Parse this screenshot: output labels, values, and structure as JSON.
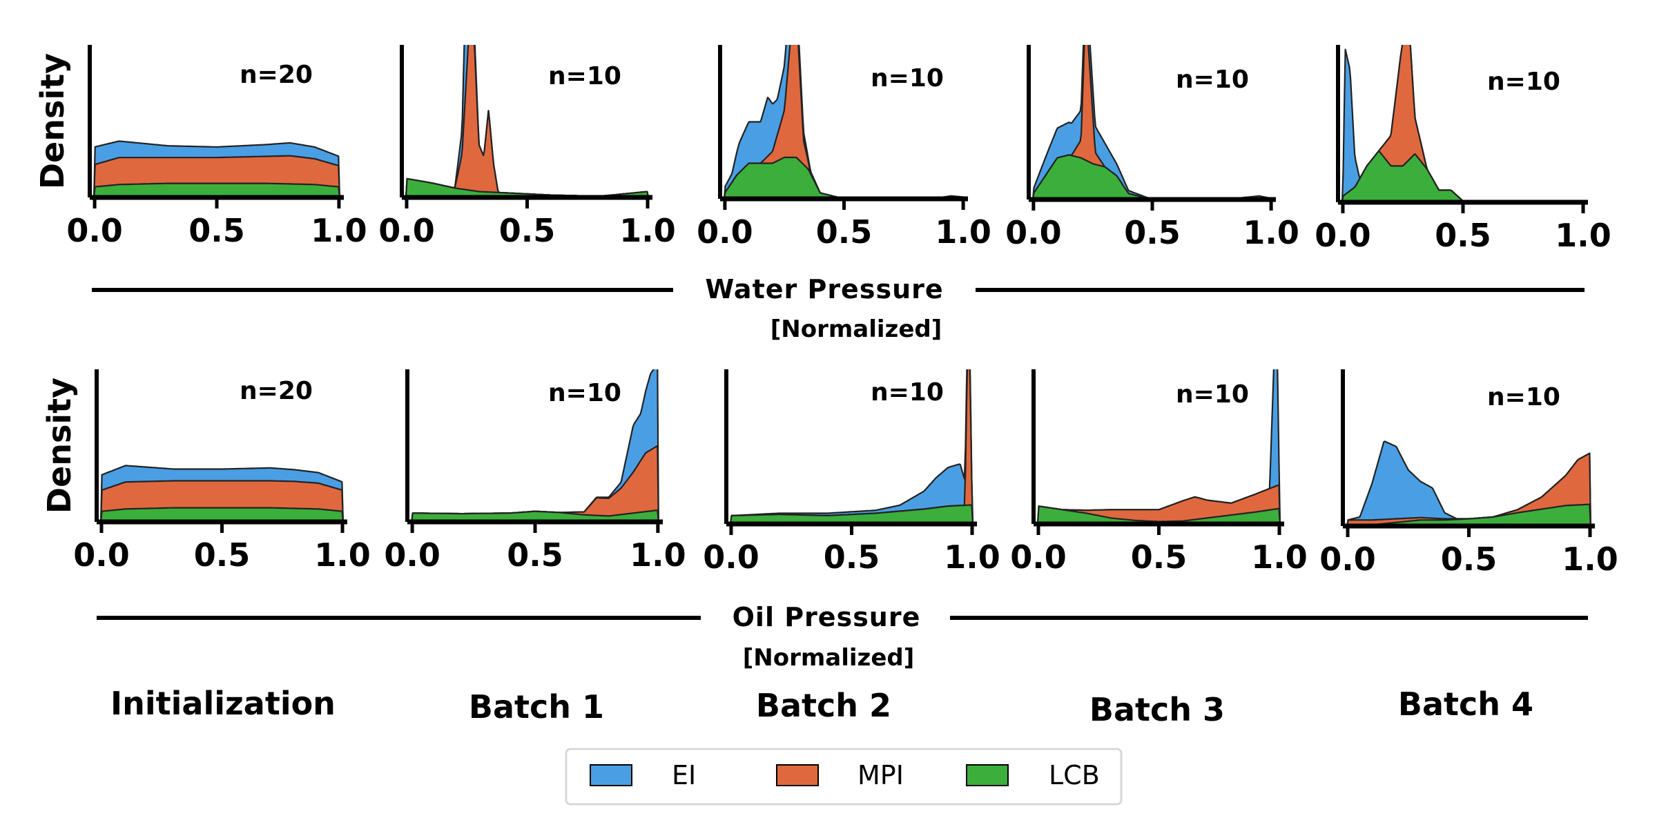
{
  "colors": {
    "EI": "#4a9fe4",
    "MPI": "#e0683f",
    "LCB": "#3cae3c",
    "axis": "#000000"
  },
  "legend": {
    "entries": [
      "EI",
      "MPI",
      "LCB"
    ]
  },
  "batch_labels": [
    "Initialization",
    "Batch 1",
    "Batch 2",
    "Batch 3",
    "Batch 4"
  ],
  "rows": [
    {
      "xlabel": "Water Pressure",
      "xlabel_sub": "[Normalized]",
      "ylabel": "Density"
    },
    {
      "xlabel": "Oil Pressure",
      "xlabel_sub": "[Normalized]",
      "ylabel": "Density"
    }
  ],
  "chart_data": [
    {
      "type": "area",
      "row": 0,
      "panel": 0,
      "title": "Initialization",
      "ylabel": "Density",
      "xlabel": "Water Pressure [Normalized]",
      "annotation": "n=20",
      "xlim": [
        -0.02,
        1.02
      ],
      "ylim": [
        0,
        2.6
      ],
      "xticks": [
        0.0,
        0.5,
        1.0
      ],
      "xtick_labels": [
        "0.0",
        "0.5",
        "1.0"
      ],
      "series": [
        {
          "name": "LCB",
          "x": [
            0,
            0.1,
            0.3,
            0.5,
            0.7,
            0.9,
            1.0
          ],
          "y": [
            0.18,
            0.22,
            0.24,
            0.24,
            0.24,
            0.22,
            0.18
          ]
        },
        {
          "name": "MPI",
          "x": [
            0,
            0.1,
            0.3,
            0.5,
            0.7,
            0.8,
            0.9,
            1.0
          ],
          "y": [
            0.38,
            0.46,
            0.44,
            0.44,
            0.46,
            0.48,
            0.44,
            0.36
          ]
        },
        {
          "name": "EI",
          "x": [
            0,
            0.1,
            0.3,
            0.5,
            0.7,
            0.8,
            0.9,
            1.0
          ],
          "y": [
            0.3,
            0.28,
            0.2,
            0.18,
            0.2,
            0.22,
            0.2,
            0.16
          ]
        }
      ]
    },
    {
      "type": "area",
      "row": 0,
      "panel": 1,
      "title": "Batch 1",
      "ylabel": "",
      "xlabel": "Water Pressure [Normalized]",
      "annotation": "n=10",
      "xlim": [
        -0.02,
        1.02
      ],
      "ylim": [
        0,
        2.6
      ],
      "xticks": [
        0.0,
        0.5,
        1.0
      ],
      "xtick_labels": [
        "0.0",
        "0.5",
        "1.0"
      ],
      "series": [
        {
          "name": "LCB",
          "x": [
            0,
            0.1,
            0.2,
            0.3,
            0.4,
            0.6,
            0.8,
            0.9,
            1.0
          ],
          "y": [
            0.32,
            0.25,
            0.16,
            0.1,
            0.08,
            0.04,
            0.02,
            0.06,
            0.1
          ]
        },
        {
          "name": "MPI",
          "x": [
            0.2,
            0.23,
            0.26,
            0.28,
            0.3,
            0.32,
            0.34,
            0.36,
            0.38
          ],
          "y": [
            0,
            0.6,
            2.8,
            2.6,
            0.8,
            0.6,
            1.4,
            0.5,
            0
          ]
        },
        {
          "name": "EI",
          "x": [
            0.2,
            0.23,
            0.25,
            0.27,
            0.3
          ],
          "y": [
            0,
            0.4,
            2.2,
            0.3,
            0
          ]
        }
      ]
    },
    {
      "type": "area",
      "row": 0,
      "panel": 2,
      "title": "Batch 2",
      "ylabel": "",
      "xlabel": "Water Pressure [Normalized]",
      "annotation": "n=10",
      "xlim": [
        -0.02,
        1.02
      ],
      "ylim": [
        0,
        2.6
      ],
      "xticks": [
        0.0,
        0.5,
        1.0
      ],
      "xtick_labels": [
        "0.0",
        "0.5",
        "1.0"
      ],
      "series": [
        {
          "name": "LCB",
          "x": [
            0,
            0.05,
            0.1,
            0.15,
            0.2,
            0.25,
            0.3,
            0.35,
            0.4,
            0.5,
            0.6,
            1.0
          ],
          "y": [
            0.1,
            0.4,
            0.6,
            0.6,
            0.6,
            0.7,
            0.7,
            0.5,
            0.1,
            0,
            0,
            0
          ]
        },
        {
          "name": "MPI",
          "x": [
            0.15,
            0.2,
            0.25,
            0.28,
            0.3,
            0.33,
            0.36
          ],
          "y": [
            0,
            0.2,
            0.8,
            2.2,
            2.5,
            0.4,
            0
          ]
        },
        {
          "name": "EI",
          "x": [
            0,
            0.03,
            0.06,
            0.1,
            0.15,
            0.18,
            0.22,
            0.26,
            0.3,
            0.35,
            0.4,
            0.8,
            0.9,
            0.95,
            1.0
          ],
          "y": [
            0.1,
            0.15,
            0.5,
            0.7,
            0.7,
            1.0,
            0.6,
            0.8,
            0.3,
            0.05,
            0,
            0,
            0.02,
            0.05,
            0.03
          ]
        }
      ]
    },
    {
      "type": "area",
      "row": 0,
      "panel": 3,
      "title": "Batch 3",
      "ylabel": "",
      "xlabel": "Water Pressure [Normalized]",
      "annotation": "n=10",
      "xlim": [
        -0.02,
        1.02
      ],
      "ylim": [
        0,
        2.6
      ],
      "xticks": [
        0.0,
        0.5,
        1.0
      ],
      "xtick_labels": [
        "0.0",
        "0.5",
        "1.0"
      ],
      "series": [
        {
          "name": "LCB",
          "x": [
            0,
            0.05,
            0.1,
            0.15,
            0.2,
            0.25,
            0.3,
            0.35,
            0.4,
            0.5,
            1.0
          ],
          "y": [
            0.1,
            0.4,
            0.7,
            0.75,
            0.7,
            0.6,
            0.55,
            0.4,
            0.1,
            0,
            0
          ]
        },
        {
          "name": "MPI",
          "x": [
            0.16,
            0.2,
            0.22,
            0.26,
            0.3
          ],
          "y": [
            0,
            0.3,
            2.6,
            0.2,
            0
          ]
        },
        {
          "name": "EI",
          "x": [
            0,
            0.05,
            0.1,
            0.15,
            0.2,
            0.25,
            0.3,
            0.35,
            0.4,
            0.5,
            0.8,
            0.9,
            0.95,
            1.0
          ],
          "y": [
            0.08,
            0.3,
            0.5,
            0.55,
            0.5,
            0.45,
            0.4,
            0.2,
            0.05,
            0,
            0,
            0.04,
            0.06,
            0.02
          ]
        }
      ]
    },
    {
      "type": "area",
      "row": 0,
      "panel": 4,
      "title": "Batch 4",
      "ylabel": "",
      "xlabel": "Water Pressure [Normalized]",
      "annotation": "n=10",
      "xlim": [
        -0.02,
        1.02
      ],
      "ylim": [
        0,
        2.6
      ],
      "xticks": [
        0.0,
        0.5,
        1.0
      ],
      "xtick_labels": [
        "0.0",
        "0.5",
        "1.0"
      ],
      "series": [
        {
          "name": "LCB",
          "x": [
            0,
            0.05,
            0.1,
            0.15,
            0.2,
            0.25,
            0.3,
            0.35,
            0.4,
            0.45,
            0.5,
            0.6,
            1.0
          ],
          "y": [
            0.1,
            0.25,
            0.6,
            0.85,
            0.6,
            0.6,
            0.8,
            0.55,
            0.2,
            0.2,
            0.02,
            0,
            0
          ]
        },
        {
          "name": "MPI",
          "x": [
            0.15,
            0.2,
            0.24,
            0.27,
            0.3,
            0.35
          ],
          "y": [
            0,
            0.5,
            1.8,
            2.6,
            0.6,
            0
          ]
        },
        {
          "name": "EI",
          "x": [
            0,
            0.01,
            0.03,
            0.05,
            0.07
          ],
          "y": [
            0,
            2.4,
            2.0,
            0.5,
            0
          ]
        }
      ]
    },
    {
      "type": "area",
      "row": 1,
      "panel": 0,
      "title": "Initialization",
      "ylabel": "Density",
      "xlabel": "Oil Pressure [Normalized]",
      "annotation": "n=20",
      "xlim": [
        -0.02,
        1.02
      ],
      "ylim": [
        0,
        2.6
      ],
      "xticks": [
        0.0,
        0.5,
        1.0
      ],
      "xtick_labels": [
        "0.0",
        "0.5",
        "1.0"
      ],
      "series": [
        {
          "name": "LCB",
          "x": [
            0,
            0.1,
            0.3,
            0.5,
            0.7,
            0.9,
            1.0
          ],
          "y": [
            0.18,
            0.22,
            0.24,
            0.24,
            0.24,
            0.22,
            0.18
          ]
        },
        {
          "name": "MPI",
          "x": [
            0,
            0.1,
            0.3,
            0.5,
            0.7,
            0.8,
            0.9,
            1.0
          ],
          "y": [
            0.36,
            0.46,
            0.46,
            0.46,
            0.46,
            0.46,
            0.44,
            0.36
          ]
        },
        {
          "name": "EI",
          "x": [
            0,
            0.1,
            0.3,
            0.5,
            0.7,
            0.8,
            0.9,
            1.0
          ],
          "y": [
            0.26,
            0.28,
            0.2,
            0.2,
            0.22,
            0.2,
            0.18,
            0.14
          ]
        }
      ]
    },
    {
      "type": "area",
      "row": 1,
      "panel": 1,
      "title": "Batch 1",
      "ylabel": "",
      "xlabel": "Oil Pressure [Normalized]",
      "annotation": "n=10",
      "xlim": [
        -0.02,
        1.02
      ],
      "ylim": [
        0,
        2.6
      ],
      "xticks": [
        0.0,
        0.5,
        1.0
      ],
      "xtick_labels": [
        "0.0",
        "0.5",
        "1.0"
      ],
      "series": [
        {
          "name": "LCB",
          "x": [
            0,
            0.2,
            0.4,
            0.5,
            0.6,
            0.7,
            0.8,
            0.9,
            1.0
          ],
          "y": [
            0.15,
            0.14,
            0.15,
            0.18,
            0.16,
            0.12,
            0.1,
            0.15,
            0.2
          ]
        },
        {
          "name": "MPI",
          "x": [
            0.6,
            0.7,
            0.75,
            0.8,
            0.85,
            0.9,
            0.95,
            1.0
          ],
          "y": [
            0,
            0.05,
            0.3,
            0.3,
            0.45,
            0.7,
            1.0,
            1.1
          ]
        },
        {
          "name": "EI",
          "x": [
            0.7,
            0.8,
            0.85,
            0.9,
            0.93,
            0.97,
            1.0
          ],
          "y": [
            0,
            0.02,
            0.1,
            0.8,
            0.8,
            1.3,
            1.4
          ]
        }
      ]
    },
    {
      "type": "area",
      "row": 1,
      "panel": 2,
      "title": "Batch 2",
      "ylabel": "",
      "xlabel": "Oil Pressure [Normalized]",
      "annotation": "n=10",
      "xlim": [
        -0.02,
        1.02
      ],
      "ylim": [
        0,
        2.6
      ],
      "xticks": [
        0.0,
        0.5,
        1.0
      ],
      "xtick_labels": [
        "0.0",
        "0.5",
        "1.0"
      ],
      "series": [
        {
          "name": "LCB",
          "x": [
            0,
            0.2,
            0.4,
            0.6,
            0.8,
            0.9,
            1.0
          ],
          "y": [
            0.14,
            0.16,
            0.14,
            0.18,
            0.25,
            0.3,
            0.32
          ]
        },
        {
          "name": "MPI",
          "x": [
            0.97,
            0.98,
            0.99,
            1.0
          ],
          "y": [
            0,
            2.5,
            2.6,
            0
          ]
        },
        {
          "name": "EI",
          "x": [
            0,
            0.2,
            0.4,
            0.6,
            0.7,
            0.8,
            0.85,
            0.9,
            0.95,
            1.0
          ],
          "y": [
            0,
            0.02,
            0.04,
            0.05,
            0.1,
            0.3,
            0.5,
            0.65,
            0.7,
            0
          ]
        }
      ]
    },
    {
      "type": "area",
      "row": 1,
      "panel": 3,
      "title": "Batch 3",
      "ylabel": "",
      "xlabel": "Oil Pressure [Normalized]",
      "annotation": "n=10",
      "xlim": [
        -0.02,
        1.02
      ],
      "ylim": [
        0,
        2.6
      ],
      "xticks": [
        0.0,
        0.5,
        1.0
      ],
      "xtick_labels": [
        "0.0",
        "0.5",
        "1.0"
      ],
      "series": [
        {
          "name": "LCB",
          "x": [
            0,
            0.1,
            0.2,
            0.3,
            0.4,
            0.5,
            0.6,
            0.7,
            0.8,
            0.9,
            1.0
          ],
          "y": [
            0.3,
            0.24,
            0.18,
            0.1,
            0.06,
            0.04,
            0.05,
            0.1,
            0.15,
            0.2,
            0.26
          ]
        },
        {
          "name": "MPI",
          "x": [
            0,
            0.1,
            0.2,
            0.3,
            0.4,
            0.5,
            0.6,
            0.65,
            0.7,
            0.8,
            0.9,
            1.0
          ],
          "y": [
            0,
            0,
            0.05,
            0.14,
            0.18,
            0.2,
            0.34,
            0.38,
            0.3,
            0.2,
            0.3,
            0.4
          ]
        },
        {
          "name": "EI",
          "x": [
            0.96,
            0.98,
            0.99,
            1.0
          ],
          "y": [
            0,
            2.4,
            2.6,
            0
          ]
        }
      ]
    },
    {
      "type": "area",
      "row": 1,
      "panel": 4,
      "title": "Batch 4",
      "ylabel": "",
      "xlabel": "Oil Pressure [Normalized]",
      "annotation": "n=10",
      "xlim": [
        -0.02,
        1.02
      ],
      "ylim": [
        0,
        2.6
      ],
      "xticks": [
        0.0,
        0.5,
        1.0
      ],
      "xtick_labels": [
        "0.0",
        "0.5",
        "1.0"
      ],
      "series": [
        {
          "name": "LCB",
          "x": [
            0,
            0.1,
            0.2,
            0.3,
            0.4,
            0.5,
            0.6,
            0.7,
            0.8,
            0.9,
            1.0
          ],
          "y": [
            0,
            0.02,
            0.06,
            0.1,
            0.1,
            0.12,
            0.15,
            0.22,
            0.28,
            0.34,
            0.36
          ]
        },
        {
          "name": "MPI",
          "x": [
            0,
            0.5,
            0.6,
            0.7,
            0.8,
            0.9,
            0.95,
            1.0
          ],
          "y": [
            0.1,
            0,
            0,
            0.05,
            0.2,
            0.5,
            0.75,
            0.85
          ]
        },
        {
          "name": "EI",
          "x": [
            0,
            0.05,
            0.1,
            0.15,
            0.2,
            0.25,
            0.3,
            0.35,
            0.4,
            0.45,
            0.5,
            1.0
          ],
          "y": [
            0,
            0.05,
            0.6,
            1.3,
            1.2,
            0.8,
            0.6,
            0.5,
            0.1,
            0,
            0,
            0
          ]
        }
      ]
    }
  ]
}
